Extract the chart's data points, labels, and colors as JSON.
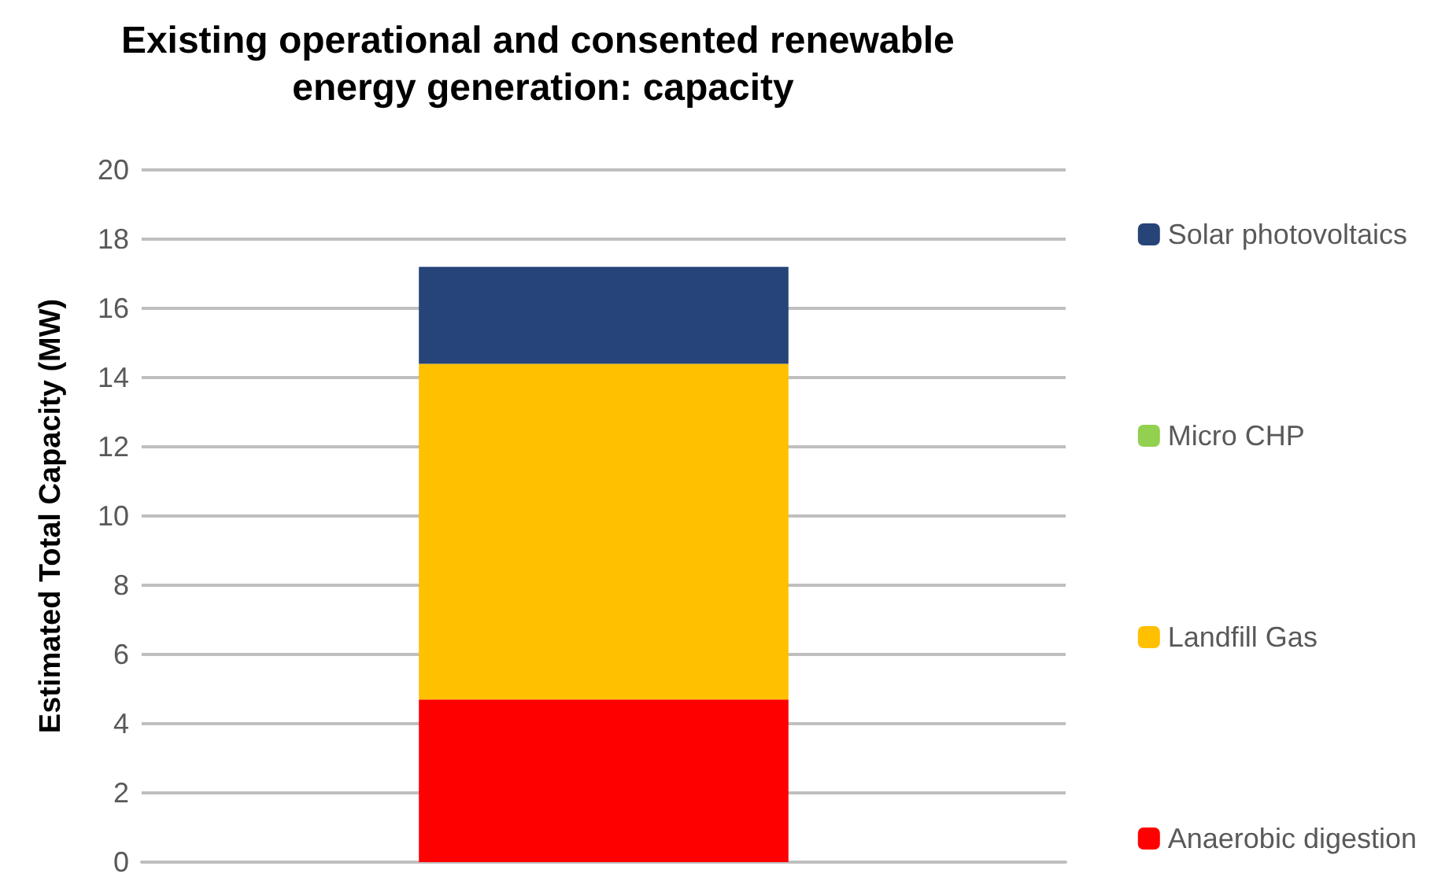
{
  "chart_data": {
    "type": "bar",
    "title": "Existing operational and consented renewable energy generation: capacity",
    "ylabel": "Estimated Total Capacity (MW)",
    "categories": [
      null
    ],
    "stacked": true,
    "series": [
      {
        "name": "Anaerobic digestion",
        "color": "#ff0000",
        "values": [
          4.7
        ]
      },
      {
        "name": "Landfill Gas",
        "color": "#ffc000",
        "values": [
          9.7
        ]
      },
      {
        "name": "Micro CHP",
        "color": "#92d050",
        "values": [
          0
        ]
      },
      {
        "name": "Solar photovoltaics",
        "color": "#264478",
        "values": [
          2.8
        ]
      }
    ],
    "ylim": [
      0,
      20
    ],
    "yticks": [
      0,
      2,
      4,
      6,
      8,
      10,
      12,
      14,
      16,
      18,
      20
    ],
    "grid": "y",
    "legend": "right"
  }
}
